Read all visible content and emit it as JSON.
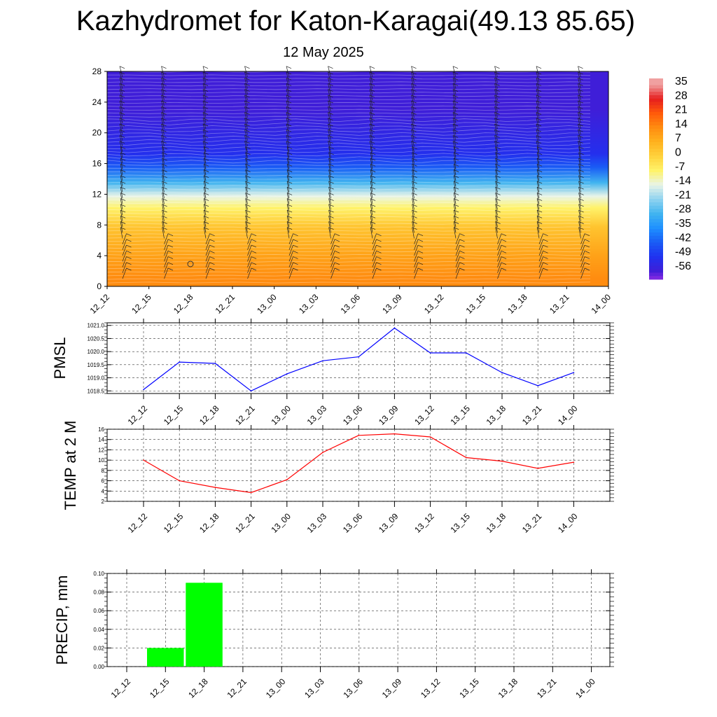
{
  "header": {
    "title": "Kazhydromet for Katon-Karagai(49.13 85.65)",
    "subtitle": "12 May 2025"
  },
  "chart_data": [
    {
      "type": "heatmap",
      "name": "temperature-cross-section",
      "x_ticks": [
        "12_12",
        "12_15",
        "12_18",
        "12_21",
        "13_00",
        "13_03",
        "13_06",
        "13_09",
        "13_12",
        "13_15",
        "13_18",
        "13_21",
        "14_00"
      ],
      "y_ticks": [
        0,
        4,
        8,
        12,
        16,
        20,
        24,
        28
      ],
      "ylim": [
        0,
        28
      ],
      "colorbar_labels": [
        35,
        28,
        21,
        14,
        7,
        0,
        -7,
        -14,
        -21,
        -28,
        -35,
        -42,
        -49,
        -56
      ],
      "temperature_bands": [
        {
          "from": 0,
          "to": 2,
          "temp": 14
        },
        {
          "from": 2,
          "to": 6,
          "temp": 10
        },
        {
          "from": 6,
          "to": 9.5,
          "temp": 3
        },
        {
          "from": 9.5,
          "to": 11,
          "temp": -7
        },
        {
          "from": 11,
          "to": 12.5,
          "temp": -14
        },
        {
          "from": 12.5,
          "to": 14.5,
          "temp": -28
        },
        {
          "from": 14.5,
          "to": 16.5,
          "temp": -42
        },
        {
          "from": 16.5,
          "to": 18,
          "temp": -50
        },
        {
          "from": 18,
          "to": 28,
          "temp": -56
        }
      ]
    },
    {
      "type": "line",
      "name": "pmsl",
      "ylabel": "PMSL",
      "categories": [
        "12_12",
        "12_15",
        "12_18",
        "12_21",
        "13_00",
        "13_03",
        "13_06",
        "13_09",
        "13_12",
        "13_15",
        "13_18",
        "13_21",
        "14_00"
      ],
      "values": [
        1018.55,
        1019.6,
        1019.55,
        1018.5,
        1019.15,
        1019.65,
        1019.8,
        1020.9,
        1019.95,
        1019.95,
        1019.2,
        1018.7,
        1019.2
      ],
      "ylim": [
        1018.4,
        1021.1
      ],
      "y_ticks": [
        "1018.5",
        "1019.0",
        "1019.5",
        "1020.0",
        "1020.5",
        "1021.0"
      ],
      "color": "#0000ff"
    },
    {
      "type": "line",
      "name": "temperature-2m",
      "ylabel": "TEMP at 2 M",
      "categories": [
        "12_12",
        "12_15",
        "12_18",
        "12_21",
        "13_00",
        "13_03",
        "13_06",
        "13_09",
        "13_12",
        "13_15",
        "13_18",
        "13_21",
        "14_00"
      ],
      "values": [
        10,
        6,
        4.7,
        3.7,
        6.2,
        11.5,
        14.8,
        15.1,
        14.5,
        10.5,
        9.8,
        8.4,
        9.6
      ],
      "ylim": [
        2,
        16
      ],
      "y_ticks": [
        "2",
        "4",
        "6",
        "8",
        "10",
        "12",
        "14",
        "16"
      ],
      "color": "#ff0000"
    },
    {
      "type": "bar",
      "name": "precipitation",
      "ylabel": "PRECIP, mm",
      "categories": [
        "12_12",
        "12_15",
        "12_18",
        "12_21",
        "13_00",
        "13_03",
        "13_06",
        "13_09",
        "13_12",
        "13_15",
        "13_18",
        "13_21",
        "14_00"
      ],
      "values": [
        0,
        0.02,
        0.09,
        0,
        0,
        0,
        0,
        0,
        0,
        0,
        0,
        0,
        0
      ],
      "ylim": [
        0,
        0.1
      ],
      "y_ticks": [
        "0.00",
        "0.02",
        "0.04",
        "0.06",
        "0.08",
        "0.10"
      ],
      "color": "#00ff00"
    }
  ]
}
